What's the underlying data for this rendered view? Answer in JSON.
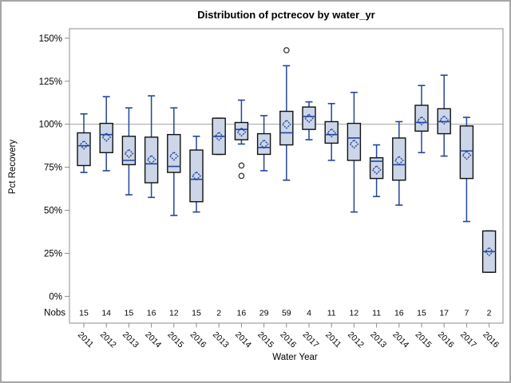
{
  "page": {
    "border_color": "#a6a6a6",
    "background": "#ffffff"
  },
  "chart_data": {
    "type": "boxplot",
    "title": "Distribution of pctrecov by water_yr",
    "xlabel": "Water Year",
    "ylabel": "Pct Recovery",
    "y_axis": {
      "min": 0,
      "max": 150,
      "step": 25,
      "unit": "%",
      "tick_labels": [
        "0%",
        "25%",
        "50%",
        "75%",
        "100%",
        "125%",
        "150%"
      ]
    },
    "reference_line": 100,
    "grid": "off",
    "nobs_label": "Nobs",
    "boxes": [
      {
        "year": "2011",
        "nobs": 15,
        "low": 72,
        "q1": 76,
        "median": 87.5,
        "q3": 95,
        "high": 106,
        "mean": 88,
        "outliers": []
      },
      {
        "year": "2012",
        "nobs": 14,
        "low": 73,
        "q1": 83.5,
        "median": 94,
        "q3": 100.5,
        "high": 116,
        "mean": 92.5,
        "outliers": []
      },
      {
        "year": "2013",
        "nobs": 15,
        "low": 59,
        "q1": 76.5,
        "median": 79,
        "q3": 93,
        "high": 109.5,
        "mean": 83,
        "outliers": []
      },
      {
        "year": "2014",
        "nobs": 16,
        "low": 57.5,
        "q1": 66,
        "median": 77,
        "q3": 92.5,
        "high": 116.5,
        "mean": 79.5,
        "outliers": []
      },
      {
        "year": "2015",
        "nobs": 12,
        "low": 47,
        "q1": 72,
        "median": 75.5,
        "q3": 94,
        "high": 109.5,
        "mean": 81.5,
        "outliers": []
      },
      {
        "year": "2016",
        "nobs": 15,
        "low": 49,
        "q1": 55,
        "median": 68,
        "q3": 85,
        "high": 93,
        "mean": 70,
        "outliers": []
      },
      {
        "year": "2013",
        "nobs": 2,
        "low": 82.5,
        "q1": 82.5,
        "median": 93,
        "q3": 103.5,
        "high": 103.5,
        "mean": 93,
        "outliers": []
      },
      {
        "year": "2014",
        "nobs": 16,
        "low": 88.5,
        "q1": 91,
        "median": 97,
        "q3": 101,
        "high": 114,
        "mean": 95.5,
        "outliers": [
          76,
          70
        ]
      },
      {
        "year": "2015",
        "nobs": 29,
        "low": 73,
        "q1": 82.5,
        "median": 86.5,
        "q3": 94.5,
        "high": 105,
        "mean": 88.5,
        "outliers": []
      },
      {
        "year": "2016",
        "nobs": 59,
        "low": 67.5,
        "q1": 88,
        "median": 95,
        "q3": 107.5,
        "high": 134,
        "mean": 100,
        "outliers": [
          143
        ]
      },
      {
        "year": "2017",
        "nobs": 4,
        "low": 91,
        "q1": 97,
        "median": 104.5,
        "q3": 110,
        "high": 113,
        "mean": 103.5,
        "outliers": []
      },
      {
        "year": "2011",
        "nobs": 11,
        "low": 79,
        "q1": 89,
        "median": 94,
        "q3": 101.5,
        "high": 112,
        "mean": 95,
        "outliers": []
      },
      {
        "year": "2012",
        "nobs": 12,
        "low": 49,
        "q1": 79,
        "median": 92,
        "q3": 100.5,
        "high": 118.5,
        "mean": 88.5,
        "outliers": []
      },
      {
        "year": "2013",
        "nobs": 11,
        "low": 58,
        "q1": 68.5,
        "median": 78.5,
        "q3": 80.5,
        "high": 88,
        "mean": 73.5,
        "outliers": []
      },
      {
        "year": "2014",
        "nobs": 16,
        "low": 53,
        "q1": 67.5,
        "median": 76.5,
        "q3": 92,
        "high": 101.5,
        "mean": 79,
        "outliers": []
      },
      {
        "year": "2015",
        "nobs": 15,
        "low": 83.5,
        "q1": 96,
        "median": 101,
        "q3": 111,
        "high": 122.5,
        "mean": 102,
        "outliers": []
      },
      {
        "year": "2016",
        "nobs": 17,
        "low": 81.5,
        "q1": 94.5,
        "median": 101.5,
        "q3": 109,
        "high": 128.5,
        "mean": 102.5,
        "outliers": []
      },
      {
        "year": "2017",
        "nobs": 7,
        "low": 43.5,
        "q1": 68.5,
        "median": 84.5,
        "q3": 99,
        "high": 104,
        "mean": 82,
        "outliers": []
      },
      {
        "year": "2016",
        "nobs": 2,
        "low": 14,
        "q1": 14,
        "median": 26,
        "q3": 38,
        "high": 38,
        "mean": 26,
        "outliers": []
      }
    ],
    "colors": {
      "box_fill": "#ccd6e8",
      "box_border": "#101010",
      "line_blue": "#24459c",
      "axis_gray": "#8c8c8c",
      "ref_line": "#a9a9a9",
      "outlier": "#2b2b2b",
      "text": "#000000"
    }
  }
}
